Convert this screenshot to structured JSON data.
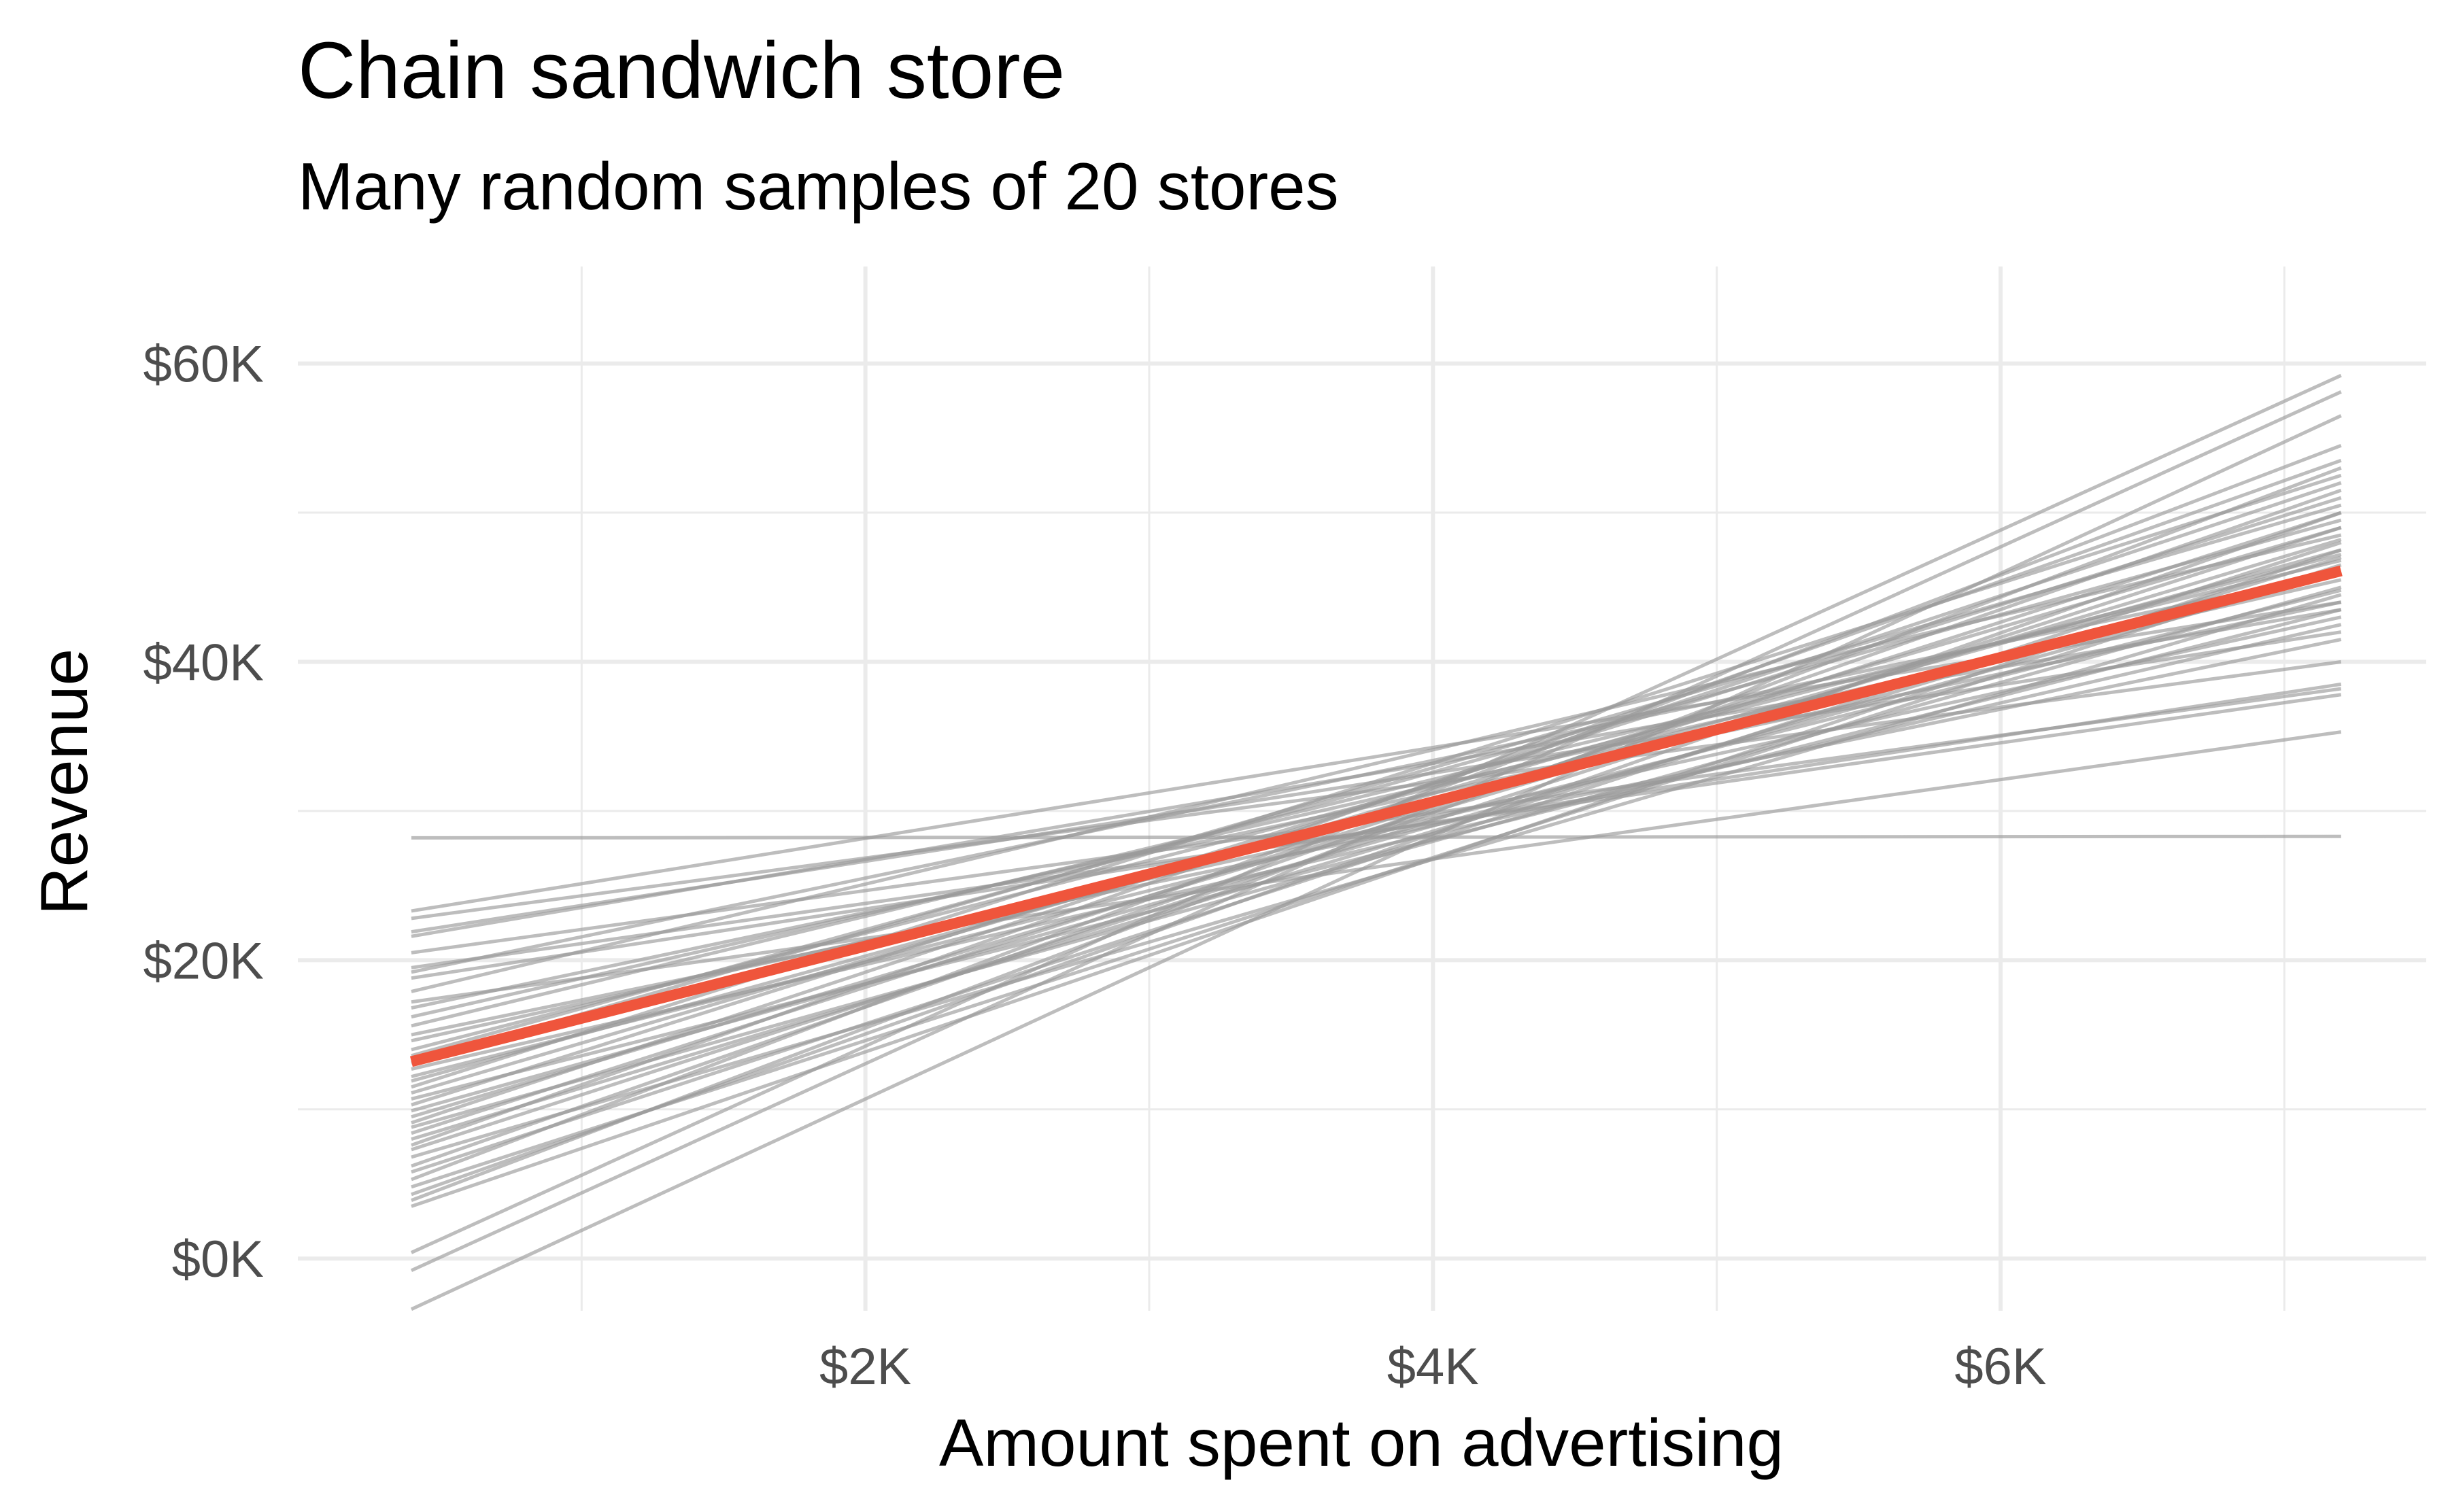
{
  "chart_data": {
    "type": "line",
    "title": "Chain sandwich store",
    "subtitle": "Many random samples of 20 stores",
    "xlabel": "Amount spent on advertising",
    "ylabel": "Revenue",
    "xlim": [
      0,
      7500
    ],
    "ylim": [
      -3500,
      66500
    ],
    "x_ticks": [
      2000,
      4000,
      6000
    ],
    "x_tick_labels": [
      "$2K",
      "$4K",
      "$6K"
    ],
    "y_ticks": [
      0,
      20000,
      40000,
      60000
    ],
    "y_tick_labels": [
      "$0K",
      "$20K",
      "$40K",
      "$60K"
    ],
    "grid": true,
    "legend": "none",
    "x_range": [
      400,
      7200
    ],
    "sample_lines": [
      [
        28200,
        28300
      ],
      [
        23300,
        44000
      ],
      [
        21900,
        42000
      ],
      [
        21600,
        43500
      ],
      [
        22800,
        40000
      ],
      [
        19200,
        46000
      ],
      [
        18800,
        38500
      ],
      [
        17900,
        48500
      ],
      [
        16800,
        44000
      ],
      [
        16200,
        45500
      ],
      [
        15600,
        46800
      ],
      [
        15000,
        41500
      ],
      [
        14600,
        43000
      ],
      [
        14000,
        47200
      ],
      [
        13600,
        49500
      ],
      [
        13100,
        50500
      ],
      [
        12700,
        42500
      ],
      [
        12200,
        44800
      ],
      [
        11900,
        47500
      ],
      [
        11500,
        52500
      ],
      [
        11100,
        49000
      ],
      [
        10700,
        43500
      ],
      [
        10300,
        51000
      ],
      [
        9900,
        46000
      ],
      [
        9500,
        48200
      ],
      [
        9100,
        52000
      ],
      [
        8800,
        45000
      ],
      [
        8400,
        50000
      ],
      [
        8000,
        47000
      ],
      [
        7600,
        53500
      ],
      [
        7300,
        49000
      ],
      [
        6800,
        44500
      ],
      [
        6200,
        51500
      ],
      [
        5800,
        48000
      ],
      [
        5300,
        54500
      ],
      [
        4800,
        46500
      ],
      [
        4300,
        50000
      ],
      [
        3900,
        53000
      ],
      [
        3500,
        47500
      ],
      [
        400,
        59200
      ],
      [
        -800,
        58100
      ],
      [
        -3400,
        56500
      ],
      [
        19500,
        37800
      ],
      [
        17200,
        35300
      ],
      [
        20500,
        38200
      ]
    ],
    "series": [
      {
        "name": "",
        "x": [
          400,
          7200
        ],
        "y": [
          13200,
          46100
        ]
      }
    ],
    "colors": {
      "sample_line": "#999999",
      "fit_line": "#ef553c",
      "grid": "#ebebeb"
    }
  }
}
